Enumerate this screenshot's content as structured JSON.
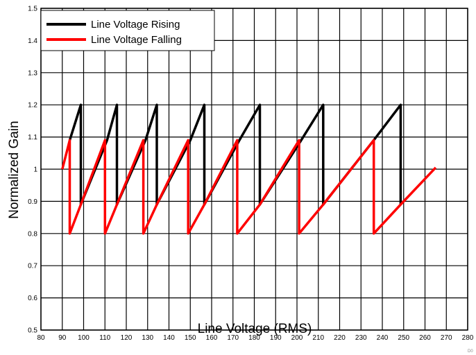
{
  "chart_data": {
    "type": "line",
    "title": "",
    "xlabel": "Line Voltage (RMS)",
    "ylabel": "Normalized Gain",
    "xlim": [
      80,
      280
    ],
    "ylim": [
      0.5,
      1.5
    ],
    "x_ticks": [
      80,
      90,
      100,
      110,
      120,
      130,
      140,
      150,
      160,
      170,
      180,
      190,
      200,
      210,
      220,
      230,
      240,
      250,
      260,
      270,
      280
    ],
    "x_tick_labels": [
      "80",
      "90",
      "100",
      "110",
      "120",
      "130",
      "140",
      "150",
      "160",
      "170",
      "180",
      "190",
      "200",
      "210",
      "220",
      "230",
      "240",
      "250",
      "260",
      "270",
      "280"
    ],
    "y_ticks": [
      0.5,
      0.6,
      0.7,
      0.8,
      0.9,
      1.0,
      1.1,
      1.2,
      1.3,
      1.4,
      1.5
    ],
    "y_tick_labels": [
      "0.5",
      "0.6",
      "0.7",
      "0.8",
      "0.9",
      "1",
      "1.1",
      "1.2",
      "1.3",
      "1.4",
      "1.5"
    ],
    "grid": true,
    "legend_position": "top-left",
    "corner_label": "D0",
    "series": [
      {
        "name": "Line Voltage Rising",
        "color": "#000000",
        "x": [
          93.5,
          98.7,
          98.7,
          111.0,
          115.6,
          115.6,
          129.0,
          134.3,
          134.3,
          150.0,
          156.6,
          156.6,
          173.0,
          182.6,
          182.6,
          202.0,
          212.3,
          212.3,
          236.0,
          248.6,
          248.6
        ],
        "y": [
          1.09,
          1.2,
          0.89,
          1.09,
          1.2,
          0.89,
          1.09,
          1.2,
          0.89,
          1.09,
          1.2,
          0.89,
          1.09,
          1.2,
          0.89,
          1.09,
          1.2,
          0.89,
          1.09,
          1.2,
          0.89
        ]
      },
      {
        "name": "Line Voltage Falling",
        "color": "#ff0000",
        "x": [
          90.0,
          93.5,
          93.5,
          98.7,
          110.0,
          110.0,
          115.6,
          128.0,
          128.0,
          134.3,
          149.0,
          149.0,
          156.6,
          172.0,
          172.0,
          182.6,
          201.0,
          201.0,
          212.3,
          236.0,
          236.0,
          248.6,
          265.0
        ],
        "y": [
          1.0,
          1.09,
          0.8,
          0.89,
          1.09,
          0.8,
          0.89,
          1.09,
          0.8,
          0.89,
          1.09,
          0.8,
          0.89,
          1.09,
          0.8,
          0.89,
          1.09,
          0.8,
          0.89,
          1.09,
          0.8,
          0.89,
          1.005
        ]
      }
    ]
  }
}
